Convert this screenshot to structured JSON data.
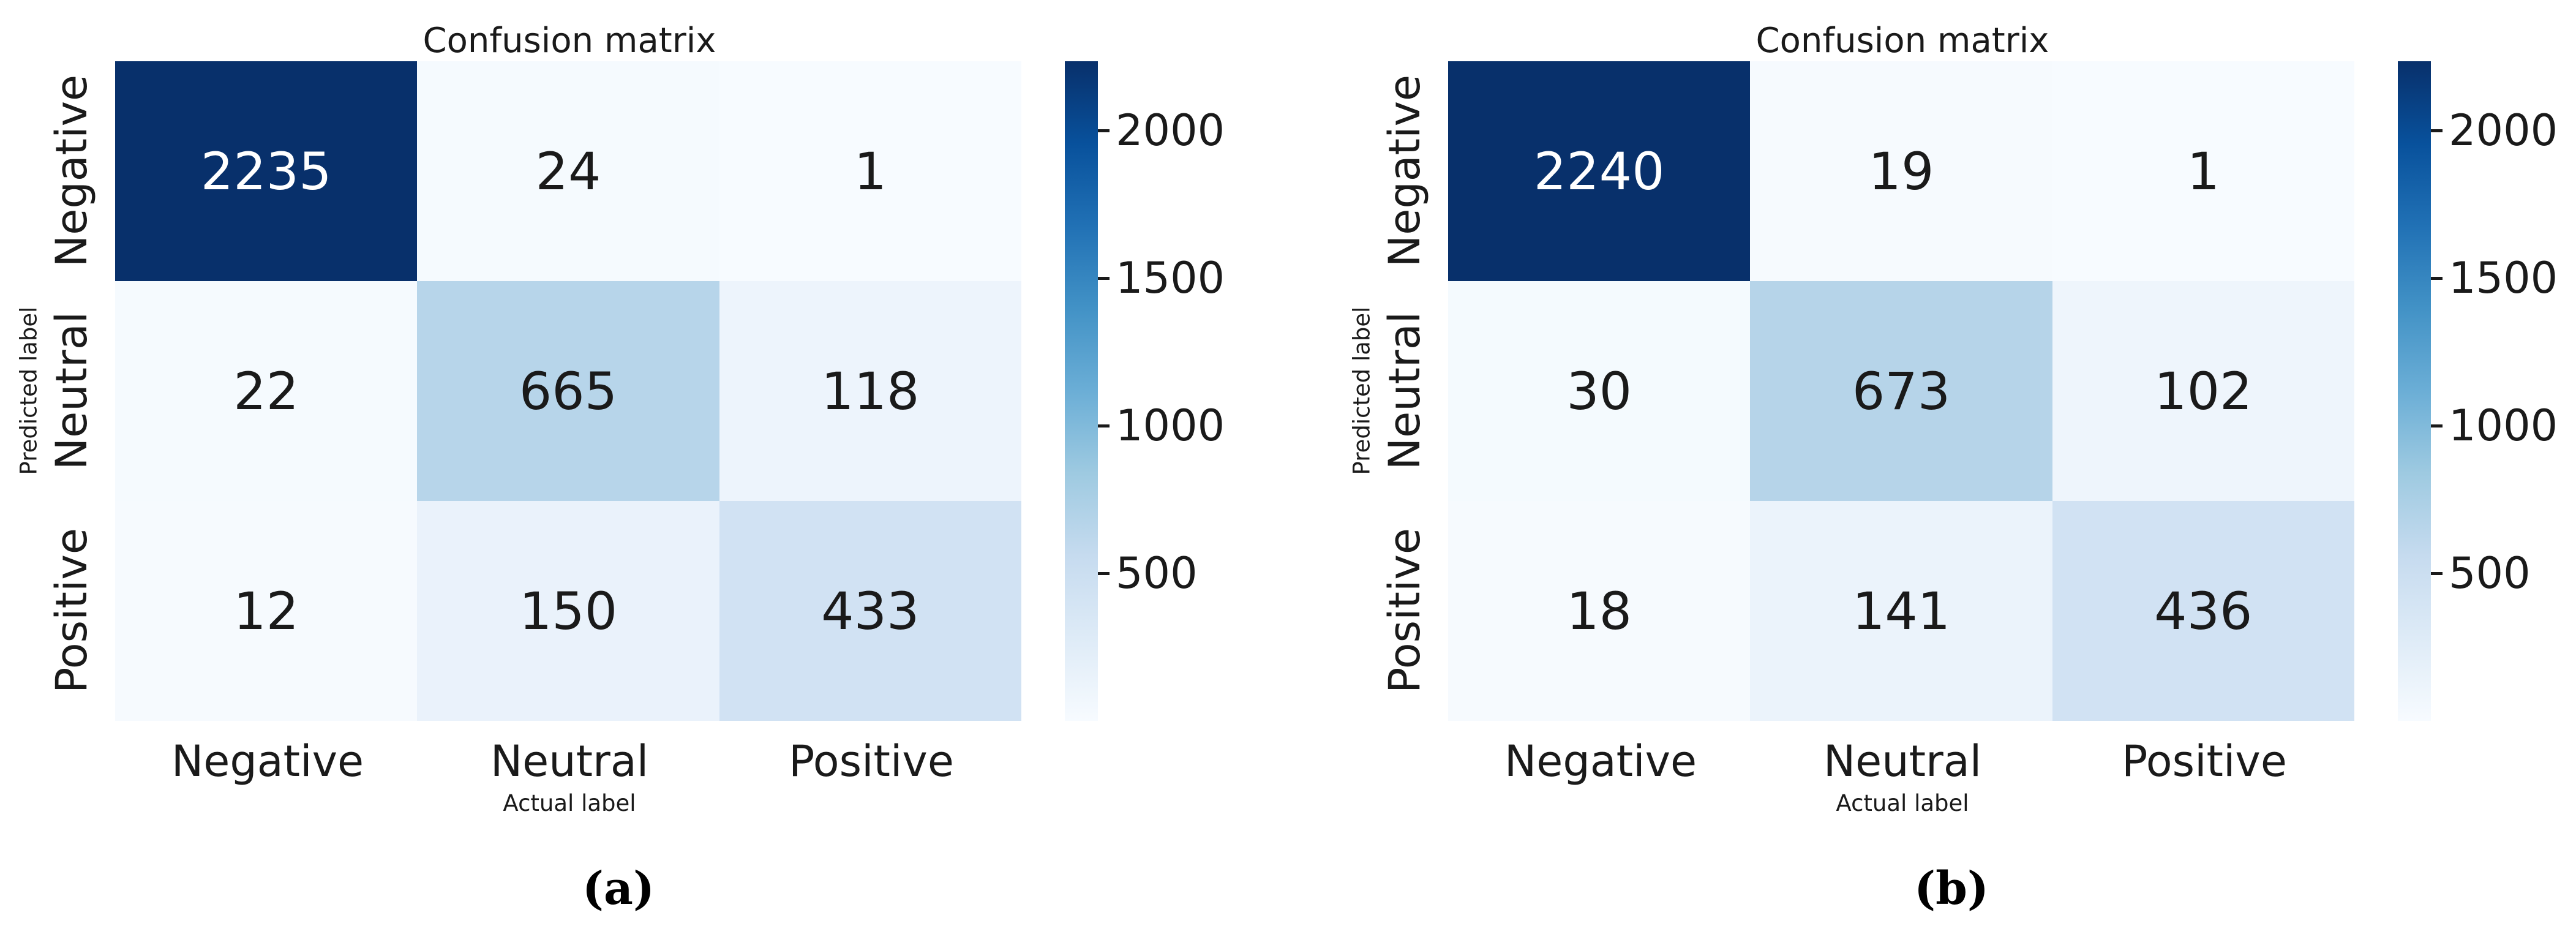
{
  "chart_data": [
    {
      "type": "heatmap",
      "title": "Confusion matrix",
      "xlabel": "Actual label",
      "ylabel": "Predicted label",
      "x_categories": [
        "Negative",
        "Neutral",
        "Positive"
      ],
      "y_categories": [
        "Negative",
        "Neutral",
        "Positive"
      ],
      "values": [
        [
          2235,
          24,
          1
        ],
        [
          22,
          665,
          118
        ],
        [
          12,
          150,
          433
        ]
      ],
      "colormap": "Blues",
      "colorbar_ticks": [
        500,
        1000,
        1500,
        2000
      ],
      "colorbar_range": [
        1,
        2235
      ],
      "caption": "(a)",
      "legend_position": "right-colorbar",
      "grid": false
    },
    {
      "type": "heatmap",
      "title": "Confusion matrix",
      "xlabel": "Actual label",
      "ylabel": "Predicted label",
      "x_categories": [
        "Negative",
        "Neutral",
        "Positive"
      ],
      "y_categories": [
        "Negative",
        "Neutral",
        "Positive"
      ],
      "values": [
        [
          2240,
          19,
          1
        ],
        [
          30,
          673,
          102
        ],
        [
          18,
          141,
          436
        ]
      ],
      "colormap": "Blues",
      "colorbar_ticks": [
        500,
        1000,
        1500,
        2000
      ],
      "colorbar_range": [
        1,
        2240
      ],
      "caption": "(b)",
      "legend_position": "right-colorbar",
      "grid": false
    }
  ],
  "colors": {
    "colormap_name": "Blues",
    "colormap_stops": [
      "#f7fbff",
      "#deebf7",
      "#c6dbef",
      "#9ecae1",
      "#6baed6",
      "#4292c6",
      "#2171b5",
      "#08519c",
      "#08306b"
    ],
    "annotation_dark_text": "#1a1a1a",
    "annotation_light_text": "#ffffff",
    "background": "#ffffff"
  },
  "panels": [
    {
      "title": "Confusion matrix",
      "ylabel": "Predicted label",
      "xlabel": "Actual label",
      "caption": "(a)",
      "row_labels": [
        "Negative",
        "Neutral",
        "Positive"
      ],
      "col_labels": [
        "Negative",
        "Neutral",
        "Positive"
      ],
      "cells": [
        [
          {
            "v": "2235",
            "bg": "#08306b",
            "fg": "#ffffff"
          },
          {
            "v": "24",
            "bg": "#f5fafe",
            "fg": "#1a1a1a"
          },
          {
            "v": "1",
            "bg": "#f7fbff",
            "fg": "#1a1a1a"
          }
        ],
        [
          {
            "v": "22",
            "bg": "#f5fafe",
            "fg": "#1a1a1a"
          },
          {
            "v": "665",
            "bg": "#b7d5ea",
            "fg": "#1a1a1a"
          },
          {
            "v": "118",
            "bg": "#edf4fc",
            "fg": "#1a1a1a"
          }
        ],
        [
          {
            "v": "12",
            "bg": "#f6fafe",
            "fg": "#1a1a1a"
          },
          {
            "v": "150",
            "bg": "#eaf2fb",
            "fg": "#1a1a1a"
          },
          {
            "v": "433",
            "bg": "#d1e2f3",
            "fg": "#1a1a1a"
          }
        ]
      ],
      "colorbar": {
        "ticks": [
          "2000",
          "1500",
          "1000",
          "500"
        ]
      }
    },
    {
      "title": "Confusion matrix",
      "ylabel": "Predicted label",
      "xlabel": "Actual label",
      "caption": "(b)",
      "row_labels": [
        "Negative",
        "Neutral",
        "Positive"
      ],
      "col_labels": [
        "Negative",
        "Neutral",
        "Positive"
      ],
      "cells": [
        [
          {
            "v": "2240",
            "bg": "#08306b",
            "fg": "#ffffff"
          },
          {
            "v": "19",
            "bg": "#f6fafe",
            "fg": "#1a1a1a"
          },
          {
            "v": "1",
            "bg": "#f7fbff",
            "fg": "#1a1a1a"
          }
        ],
        [
          {
            "v": "30",
            "bg": "#f4fafe",
            "fg": "#1a1a1a"
          },
          {
            "v": "673",
            "bg": "#b6d4e9",
            "fg": "#1a1a1a"
          },
          {
            "v": "102",
            "bg": "#eef5fc",
            "fg": "#1a1a1a"
          }
        ],
        [
          {
            "v": "18",
            "bg": "#f6fafe",
            "fg": "#1a1a1a"
          },
          {
            "v": "141",
            "bg": "#ebf3fb",
            "fg": "#1a1a1a"
          },
          {
            "v": "436",
            "bg": "#d1e2f3",
            "fg": "#1a1a1a"
          }
        ]
      ],
      "colorbar": {
        "ticks": [
          "2000",
          "1500",
          "1000",
          "500"
        ]
      }
    }
  ]
}
